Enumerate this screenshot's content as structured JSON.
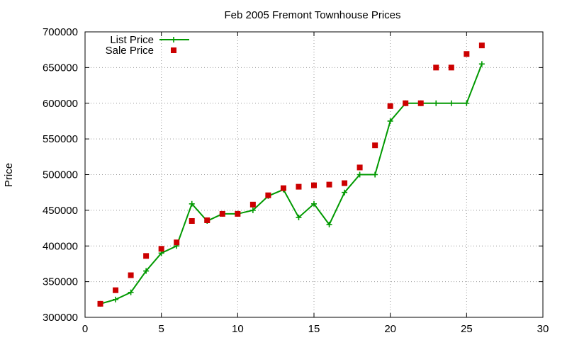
{
  "chart_data": {
    "type": "scatter",
    "title": "Feb 2005 Fremont Townhouse Prices",
    "xlabel": "",
    "ylabel": "Price",
    "xlim": [
      0,
      30
    ],
    "ylim": [
      300000,
      700000
    ],
    "xticks": [
      0,
      5,
      10,
      15,
      20,
      25,
      30
    ],
    "yticks": [
      300000,
      350000,
      400000,
      450000,
      500000,
      550000,
      600000,
      650000,
      700000
    ],
    "grid": true,
    "legend_position": "top-left",
    "series": [
      {
        "name": "List Price",
        "style": "line-with-plus-markers",
        "color": "#009900",
        "x": [
          1,
          2,
          3,
          4,
          5,
          6,
          7,
          8,
          9,
          10,
          11,
          12,
          13,
          14,
          15,
          16,
          17,
          18,
          19,
          20,
          21,
          22,
          23,
          24,
          25,
          26
        ],
        "y": [
          319000,
          325000,
          335000,
          365000,
          390000,
          400000,
          459000,
          435000,
          445000,
          445000,
          450000,
          470000,
          479000,
          440000,
          459000,
          430000,
          475000,
          500000,
          500000,
          575000,
          600000,
          600000,
          600000,
          600000,
          600000,
          655000
        ]
      },
      {
        "name": "Sale Price",
        "style": "square-markers",
        "color": "#cc0000",
        "x": [
          1,
          2,
          3,
          4,
          5,
          6,
          7,
          8,
          9,
          10,
          11,
          12,
          13,
          14,
          15,
          16,
          17,
          18,
          19,
          20,
          21,
          22,
          23,
          24,
          25,
          26
        ],
        "y": [
          319000,
          338000,
          359000,
          386000,
          396000,
          405000,
          435000,
          436000,
          445000,
          445000,
          458000,
          471000,
          481000,
          483000,
          485000,
          486000,
          488000,
          510000,
          541000,
          596000,
          600000,
          600000,
          650000,
          650000,
          669000,
          681000
        ]
      }
    ]
  }
}
